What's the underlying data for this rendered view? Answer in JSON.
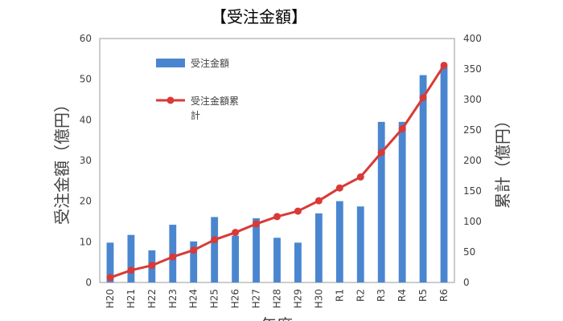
{
  "chart_data": {
    "type": "bar+line",
    "title": "【受注金額】",
    "xlabel": "年度",
    "ylabel_left": "受注金額（億円）",
    "ylabel_right": "累計（億円）",
    "categories": [
      "H20",
      "H21",
      "H22",
      "H23",
      "H24",
      "H25",
      "H26",
      "H27",
      "H28",
      "H29",
      "H30",
      "R1",
      "R2",
      "R3",
      "R4",
      "R5",
      "R6"
    ],
    "ylim_left": [
      0,
      60
    ],
    "ylim_right": [
      0,
      400
    ],
    "yticks_left": [
      0,
      10,
      20,
      30,
      40,
      50,
      60
    ],
    "yticks_right": [
      0,
      50,
      100,
      150,
      200,
      250,
      300,
      350,
      400
    ],
    "grid": false,
    "legend_placement": "top-left",
    "series": [
      {
        "name": "受注金額",
        "type": "bar",
        "axis": "left",
        "color": "#4a86d0",
        "values": [
          9.8,
          11.7,
          7.9,
          14.2,
          10.1,
          16.1,
          11.5,
          15.8,
          11.0,
          9.8,
          17.0,
          20.0,
          18.7,
          39.5,
          39.5,
          51.0,
          53.0
        ]
      },
      {
        "name": "受注金額累計",
        "type": "line",
        "axis": "right",
        "color": "#d93a36",
        "values": [
          8,
          20,
          28,
          42,
          53,
          70,
          82,
          96,
          108,
          117,
          134,
          155,
          173,
          213,
          252,
          303,
          356
        ]
      }
    ]
  }
}
